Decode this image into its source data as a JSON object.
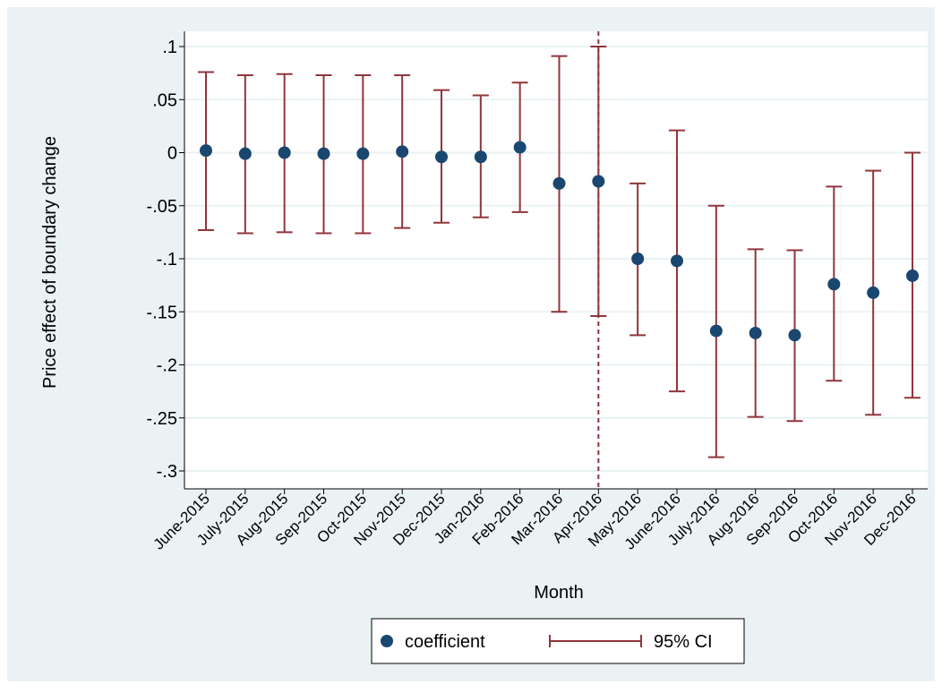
{
  "chart_data": {
    "type": "scatter",
    "subtype": "coefficient plot with 95% confidence intervals",
    "xlabel": "Month",
    "ylabel": "Price effect of boundary change",
    "categories": [
      "June-2015",
      "July-2015",
      "Aug-2015",
      "Sep-2015",
      "Oct-2015",
      "Nov-2015",
      "Dec-2015",
      "Jan-2016",
      "Feb-2016",
      "Mar-2016",
      "Apr-2016",
      "May-2016",
      "June-2016",
      "July-2016",
      "Aug-2016",
      "Sep-2016",
      "Oct-2016",
      "Nov-2016",
      "Dec-2016"
    ],
    "y_ticks": [
      0.1,
      0.05,
      0,
      -0.05,
      -0.1,
      -0.15,
      -0.2,
      -0.25,
      -0.3
    ],
    "y_tick_labels": [
      ".1",
      ".05",
      "0",
      "-.05",
      "-.1",
      "-.15",
      "-.2",
      "-.25",
      "-.3"
    ],
    "ylim": [
      -0.315,
      0.11
    ],
    "grid": true,
    "series": [
      {
        "name": "coefficient",
        "values": [
          0.002,
          -0.001,
          0.0,
          -0.001,
          -0.001,
          0.001,
          -0.004,
          -0.004,
          0.005,
          -0.029,
          -0.027,
          -0.1,
          -0.102,
          -0.168,
          -0.17,
          -0.172,
          -0.124,
          -0.132,
          -0.116
        ]
      },
      {
        "name": "95% CI",
        "lower": [
          -0.073,
          -0.076,
          -0.075,
          -0.076,
          -0.076,
          -0.071,
          -0.066,
          -0.061,
          -0.056,
          -0.15,
          -0.154,
          -0.172,
          -0.225,
          -0.287,
          -0.249,
          -0.253,
          -0.215,
          -0.247,
          -0.231
        ],
        "upper": [
          0.076,
          0.073,
          0.074,
          0.073,
          0.073,
          0.073,
          0.059,
          0.054,
          0.066,
          0.091,
          0.1,
          -0.029,
          0.021,
          -0.05,
          -0.091,
          -0.092,
          -0.032,
          -0.017,
          0.0
        ]
      }
    ],
    "reference_line": {
      "at": "Apr-2016",
      "style": "dashed"
    },
    "legend_placement": "bottom-center",
    "colors": {
      "background": "#eaf2f3",
      "plot_area": "#ffffff",
      "marker": "#1a476f",
      "ci": "#90353b",
      "grid": "#eaf2f3"
    }
  }
}
